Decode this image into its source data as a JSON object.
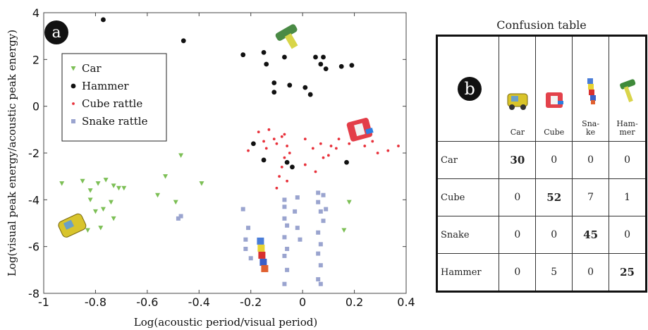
{
  "panel_a_badge": "a",
  "panel_b_badge": "b",
  "colors": {
    "car": "#7cbf55",
    "hammer": "#111111",
    "cube": "#e8303a",
    "snake": "#9aa4cf"
  },
  "chart_data": {
    "type": "scatter",
    "xlabel": "Log(acoustic period/visual period)",
    "ylabel": "Log(visual peak energy/acoustic peak energy)",
    "xlim": [
      -1,
      0.4
    ],
    "ylim": [
      -8,
      4
    ],
    "xticks": [
      "-1",
      "-0.8",
      "-0.6",
      "-0.4",
      "-0.2",
      "0",
      "0.2",
      "0.4"
    ],
    "yticks": [
      "-8",
      "-6",
      "-4",
      "-2",
      "0",
      "2",
      "4"
    ],
    "legend_position": "upper-left",
    "series": [
      {
        "name": "Car",
        "marker": "triangle",
        "color": "#7cbf55",
        "points": [
          [
            -0.93,
            -3.3
          ],
          [
            -0.85,
            -3.2
          ],
          [
            -0.82,
            -3.6
          ],
          [
            -0.79,
            -3.3
          ],
          [
            -0.76,
            -3.15
          ],
          [
            -0.73,
            -3.4
          ],
          [
            -0.71,
            -3.5
          ],
          [
            -0.69,
            -3.5
          ],
          [
            -0.82,
            -4.0
          ],
          [
            -0.8,
            -4.5
          ],
          [
            -0.77,
            -4.4
          ],
          [
            -0.74,
            -4.1
          ],
          [
            -0.86,
            -4.8
          ],
          [
            -0.83,
            -5.3
          ],
          [
            -0.78,
            -5.2
          ],
          [
            -0.73,
            -4.8
          ],
          [
            -0.56,
            -3.8
          ],
          [
            -0.53,
            -3.0
          ],
          [
            -0.49,
            -4.1
          ],
          [
            -0.39,
            -3.3
          ],
          [
            -0.47,
            -2.1
          ],
          [
            0.16,
            -5.3
          ],
          [
            0.18,
            -4.1
          ]
        ]
      },
      {
        "name": "Hammer",
        "marker": "circle",
        "color": "#111111",
        "points": [
          [
            -0.77,
            3.7
          ],
          [
            -0.46,
            2.8
          ],
          [
            -0.23,
            2.2
          ],
          [
            -0.15,
            2.3
          ],
          [
            -0.14,
            1.8
          ],
          [
            -0.07,
            2.1
          ],
          [
            0.05,
            2.1
          ],
          [
            0.08,
            2.1
          ],
          [
            0.07,
            1.8
          ],
          [
            0.09,
            1.6
          ],
          [
            0.15,
            1.7
          ],
          [
            0.19,
            1.75
          ],
          [
            -0.11,
            1.0
          ],
          [
            -0.11,
            0.6
          ],
          [
            -0.05,
            0.9
          ],
          [
            0.01,
            0.8
          ],
          [
            0.03,
            0.5
          ],
          [
            -0.19,
            -1.6
          ],
          [
            -0.15,
            -2.3
          ],
          [
            -0.06,
            -2.4
          ],
          [
            -0.04,
            -2.6
          ],
          [
            0.17,
            -2.4
          ]
        ]
      },
      {
        "name": "Cube rattle",
        "marker": "dot",
        "color": "#e8303a",
        "points": [
          [
            -0.17,
            -1.1
          ],
          [
            -0.15,
            -1.5
          ],
          [
            -0.14,
            -1.8
          ],
          [
            -0.11,
            -1.4
          ],
          [
            -0.1,
            -1.6
          ],
          [
            -0.08,
            -1.3
          ],
          [
            -0.07,
            -1.2
          ],
          [
            -0.06,
            -1.7
          ],
          [
            -0.05,
            -2.0
          ],
          [
            -0.07,
            -2.2
          ],
          [
            -0.08,
            -2.6
          ],
          [
            -0.09,
            -3.0
          ],
          [
            -0.1,
            -3.5
          ],
          [
            -0.06,
            -3.2
          ],
          [
            -0.13,
            -1.0
          ],
          [
            -0.21,
            -1.9
          ],
          [
            0.01,
            -1.4
          ],
          [
            0.04,
            -1.8
          ],
          [
            0.07,
            -1.6
          ],
          [
            0.08,
            -2.2
          ],
          [
            0.1,
            -2.1
          ],
          [
            0.11,
            -1.7
          ],
          [
            0.13,
            -1.8
          ],
          [
            0.18,
            -1.6
          ],
          [
            0.24,
            -1.7
          ],
          [
            0.29,
            -2.0
          ],
          [
            0.33,
            -1.9
          ],
          [
            0.37,
            -1.7
          ],
          [
            0.14,
            -1.4
          ],
          [
            0.27,
            -1.5
          ],
          [
            0.01,
            -2.5
          ],
          [
            0.05,
            -2.8
          ]
        ]
      },
      {
        "name": "Snake rattle",
        "marker": "square",
        "color": "#9aa4cf",
        "points": [
          [
            -0.48,
            -4.8
          ],
          [
            -0.47,
            -4.7
          ],
          [
            -0.23,
            -4.4
          ],
          [
            -0.21,
            -5.2
          ],
          [
            -0.22,
            -5.7
          ],
          [
            -0.22,
            -6.1
          ],
          [
            -0.2,
            -6.5
          ],
          [
            -0.07,
            -4.0
          ],
          [
            -0.07,
            -4.3
          ],
          [
            -0.07,
            -4.8
          ],
          [
            -0.06,
            -5.1
          ],
          [
            -0.07,
            -5.6
          ],
          [
            -0.06,
            -6.1
          ],
          [
            -0.07,
            -6.4
          ],
          [
            -0.06,
            -7.0
          ],
          [
            -0.07,
            -7.6
          ],
          [
            -0.02,
            -3.9
          ],
          [
            -0.03,
            -4.5
          ],
          [
            -0.02,
            -5.2
          ],
          [
            -0.01,
            -5.7
          ],
          [
            0.06,
            -3.7
          ],
          [
            0.06,
            -4.1
          ],
          [
            0.07,
            -4.5
          ],
          [
            0.08,
            -4.9
          ],
          [
            0.06,
            -5.4
          ],
          [
            0.07,
            -5.9
          ],
          [
            0.06,
            -6.3
          ],
          [
            0.07,
            -6.8
          ],
          [
            0.06,
            -7.4
          ],
          [
            0.07,
            -7.6
          ],
          [
            0.09,
            -4.4
          ],
          [
            0.08,
            -3.8
          ]
        ]
      }
    ]
  },
  "confusion_table": {
    "title": "Confusion table",
    "columns": [
      {
        "label": "Car",
        "icon": "car-toy-icon"
      },
      {
        "label": "Cube",
        "icon": "cube-rattle-icon"
      },
      {
        "label": "Sna-\nke",
        "icon": "snake-rattle-icon"
      },
      {
        "label": "Ham-\nmer",
        "icon": "hammer-toy-icon"
      }
    ],
    "rows": [
      {
        "label": "Car",
        "values": [
          "30",
          "0",
          "0",
          "0"
        ]
      },
      {
        "label": "Cube",
        "values": [
          "0",
          "52",
          "7",
          "1"
        ]
      },
      {
        "label": "Snake",
        "values": [
          "0",
          "0",
          "45",
          "0"
        ]
      },
      {
        "label": "Hammer",
        "values": [
          "0",
          "5",
          "0",
          "25"
        ]
      }
    ]
  }
}
